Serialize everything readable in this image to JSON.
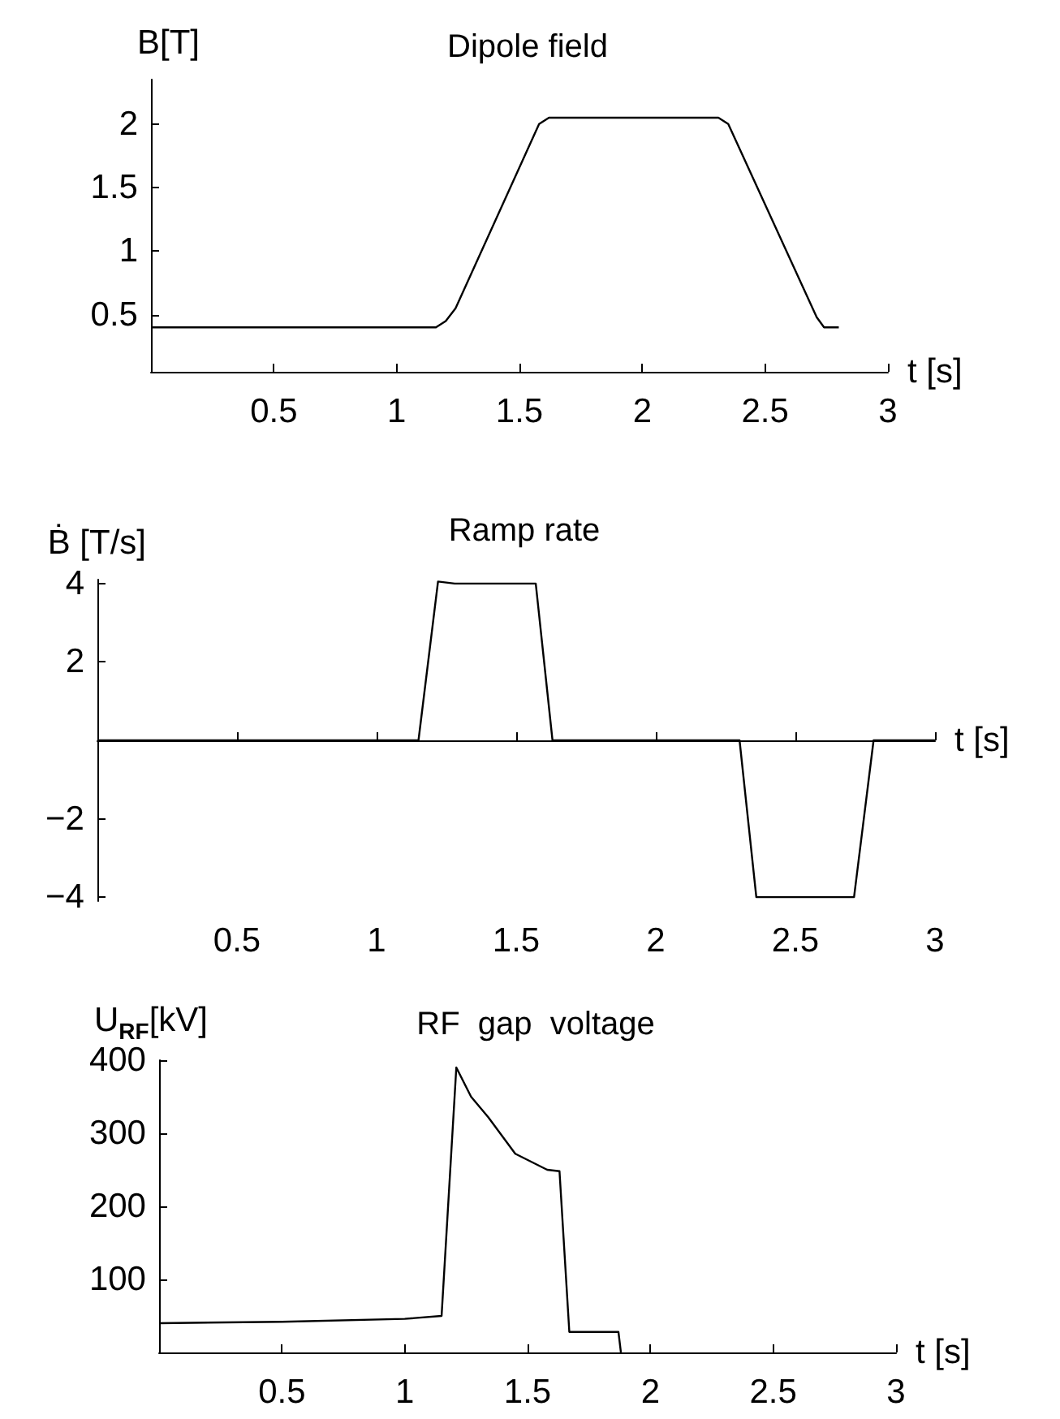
{
  "chart_data": [
    {
      "type": "line",
      "title": "Dipole field",
      "xlabel": "t [s]",
      "ylabel": "B[T]",
      "xlim": [
        0,
        3
      ],
      "ylim": [
        0.05,
        2.35
      ],
      "xticks": [
        0.5,
        1,
        1.5,
        2,
        2.5,
        3
      ],
      "yticks": [
        0.5,
        1,
        1.5,
        2
      ],
      "series": [
        {
          "color": "#000000",
          "x": [
            0,
            1.16,
            1.2,
            1.24,
            1.58,
            1.62,
            2.31,
            2.35,
            2.71,
            2.74,
            2.8
          ],
          "values": [
            0.4,
            0.4,
            0.45,
            0.55,
            2.0,
            2.05,
            2.05,
            2.0,
            0.48,
            0.4,
            0.4
          ]
        }
      ]
    },
    {
      "type": "line",
      "title": "Ramp rate",
      "xlabel": "t [s]",
      "ylabel": "Ḃ [T/s]",
      "xlim": [
        0,
        3
      ],
      "ylim": [
        -4.1,
        4.1
      ],
      "xticks": [
        0.5,
        1,
        1.5,
        2,
        2.5,
        3
      ],
      "yticks": [
        -4,
        -2,
        2,
        4
      ],
      "series": [
        {
          "color": "#000000",
          "x": [
            0,
            1.15,
            1.22,
            1.28,
            1.57,
            1.63,
            2.3,
            2.36,
            2.71,
            2.78,
            3
          ],
          "values": [
            0,
            0,
            4.05,
            4,
            4,
            0,
            0,
            -4,
            -4,
            0,
            0
          ]
        }
      ]
    },
    {
      "type": "line",
      "title": "RF  gap  voltage",
      "xlabel": "t [s]",
      "ylabel": "U$_{RF}$[kV]",
      "xlim": [
        0,
        3
      ],
      "ylim": [
        0,
        400
      ],
      "xticks": [
        0.5,
        1,
        1.5,
        2,
        2.5,
        3
      ],
      "yticks": [
        100,
        200,
        300,
        400
      ],
      "series": [
        {
          "color": "#000000",
          "x": [
            0,
            0.5,
            1,
            1.15,
            1.21,
            1.27,
            1.34,
            1.45,
            1.58,
            1.63,
            1.67,
            1.87,
            1.88
          ],
          "values": [
            40,
            42,
            46,
            50,
            390,
            350,
            322,
            272,
            250,
            248,
            28,
            28,
            0
          ]
        }
      ]
    }
  ]
}
